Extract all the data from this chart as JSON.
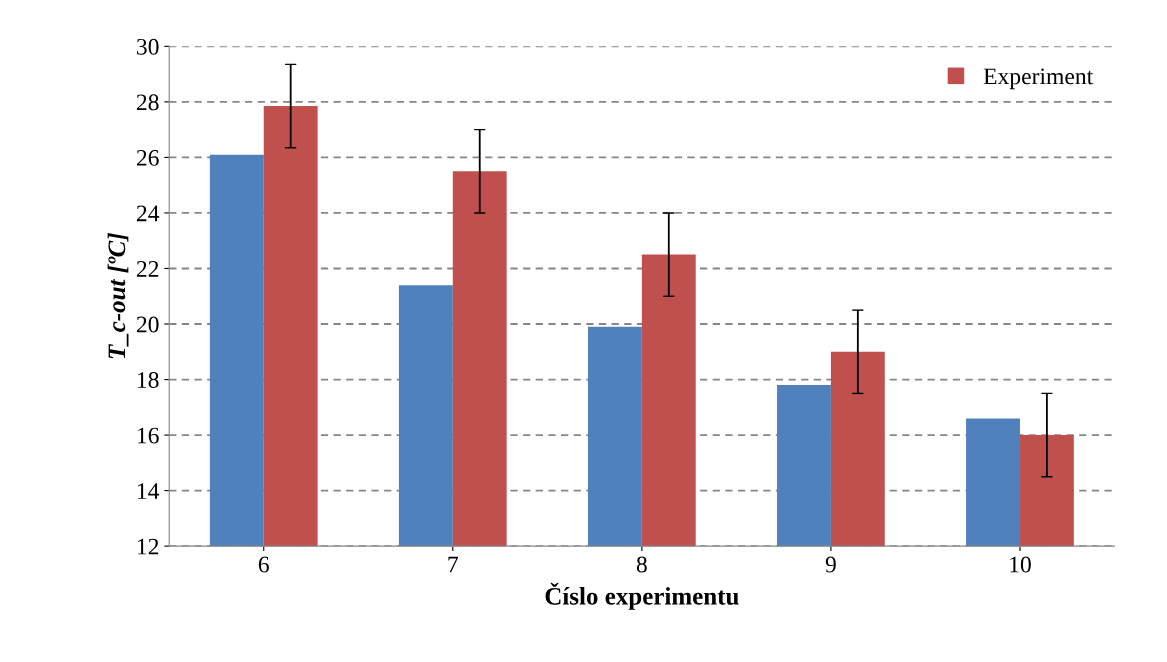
{
  "chart_data": {
    "type": "bar",
    "xlabel": "Číslo experimentu",
    "ylabel": "T_c-out [ºC]",
    "categories": [
      "6",
      "7",
      "8",
      "9",
      "10"
    ],
    "series": [
      {
        "color": "#4f81bd",
        "values": [
          26.1,
          21.4,
          19.9,
          17.8,
          16.6
        ]
      },
      {
        "name": "Experiment",
        "color": "#c0504d",
        "values": [
          27.85,
          25.5,
          22.5,
          19.0,
          16.0
        ],
        "errors": [
          1.5,
          1.5,
          1.5,
          1.5,
          1.5
        ]
      }
    ],
    "ylim": [
      12,
      30
    ],
    "yticks": [
      12,
      14,
      16,
      18,
      20,
      22,
      24,
      26,
      28,
      30
    ],
    "grid": "y",
    "legend": "top right"
  }
}
